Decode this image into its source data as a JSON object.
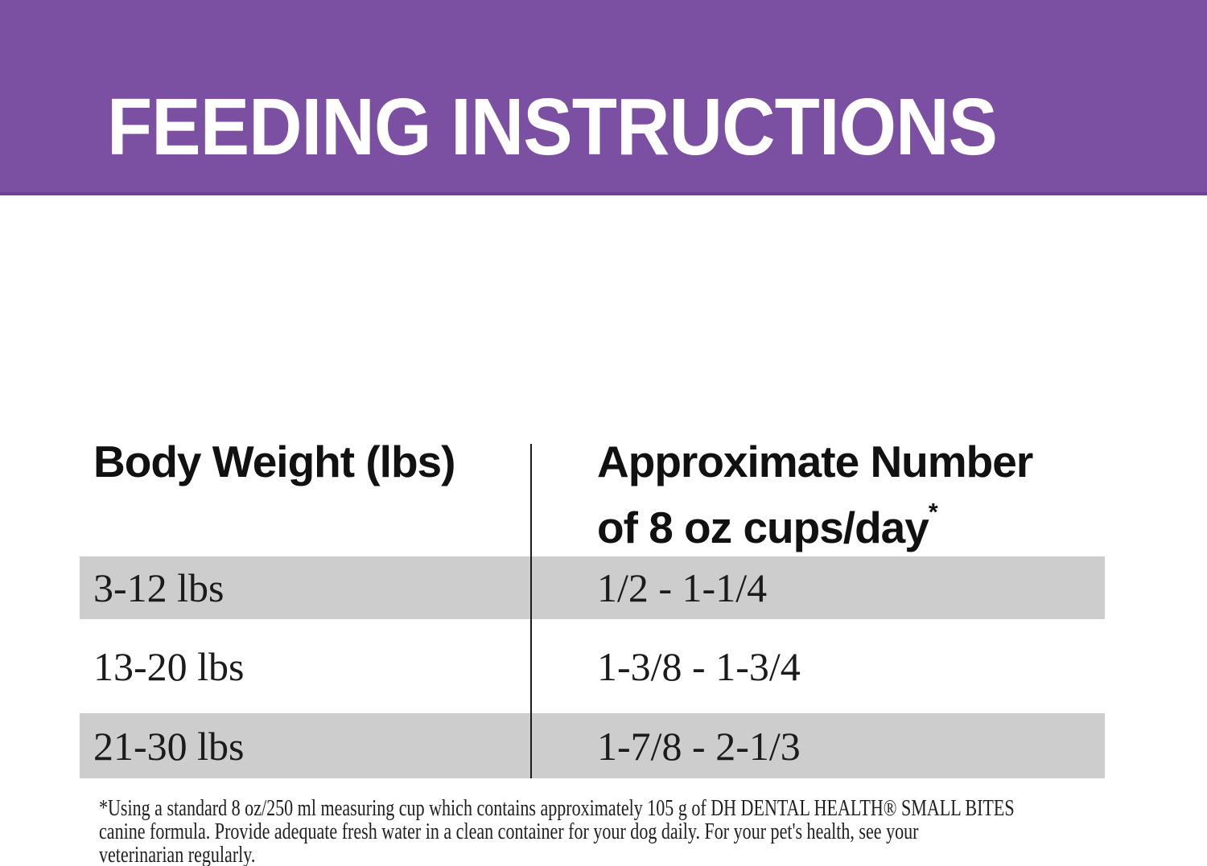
{
  "banner": {
    "title": "FEEDING INSTRUCTIONS",
    "background_color": "#7B4FA2",
    "text_color": "#FFFFFF"
  },
  "table": {
    "columns": [
      {
        "header": "Body Weight (lbs)"
      },
      {
        "header_line1": "Approximate Number",
        "header_line2": "of 8 oz cups/day",
        "footnote_marker": "*"
      }
    ],
    "rows": [
      {
        "weight": "3-12 lbs",
        "cups": "1/2 - 1-1/4",
        "shaded": true
      },
      {
        "weight": "13-20 lbs",
        "cups": "1-3/8 - 1-3/4",
        "shaded": false
      },
      {
        "weight": "21-30 lbs",
        "cups": "1-7/8 - 2-1/3",
        "shaded": true
      }
    ],
    "row_shade_color": "#CDCDCD",
    "divider_color": "#1C1C1C"
  },
  "footnote": {
    "lines": [
      "*Using a standard 8 oz/250 ml measuring cup which contains approximately 105 g of DH DENTAL HEALTH® SMALL BITES",
      "canine formula. Provide adequate fresh water in a clean container for your dog daily. For your pet's health, see your",
      "veterinarian regularly."
    ]
  }
}
